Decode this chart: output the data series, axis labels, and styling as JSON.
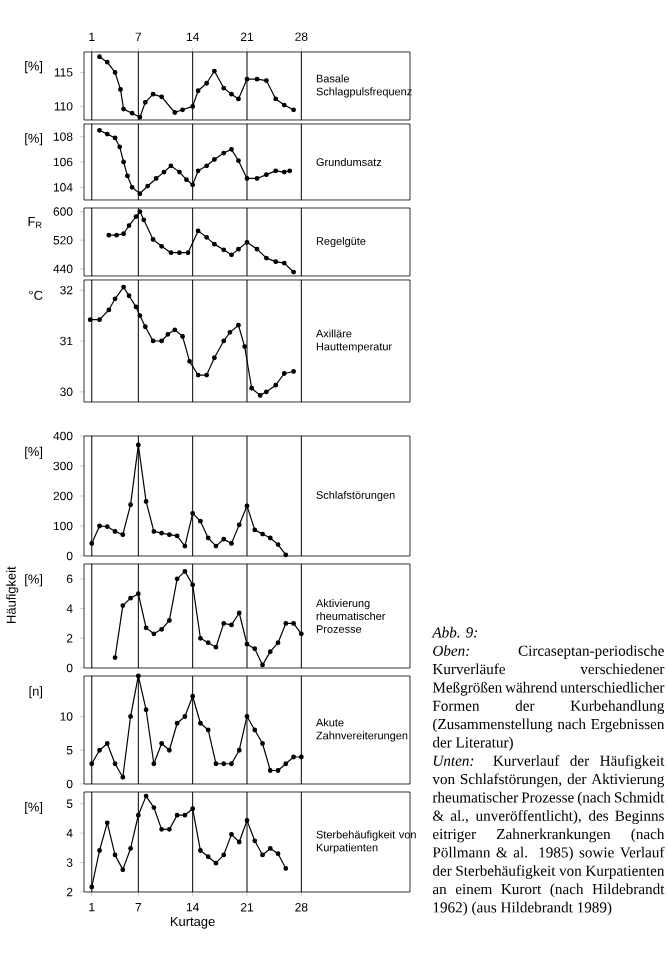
{
  "chart_data": [
    {
      "type": "line",
      "xlim": [
        0,
        42
      ],
      "xticks": [
        1,
        7,
        14,
        21,
        28
      ],
      "ylim": [
        108,
        118
      ],
      "yticks": [
        110,
        115
      ],
      "ylabel": "[%]",
      "grid": "x",
      "marker": "circle",
      "series": [
        {
          "name": "Basale Schlagpulsfrequenz",
          "color": "#000000",
          "x": [
            2.0,
            3.0,
            4.0,
            4.7,
            5.1,
            6.2,
            7.2,
            7.9,
            8.9,
            10.0,
            11.7,
            12.7,
            14.0,
            14.7,
            15.8,
            16.8,
            18.0,
            19.0,
            19.9,
            21.0,
            22.3,
            23.5,
            24.7,
            25.8,
            27.0
          ],
          "values": [
            117.3,
            116.5,
            115,
            112.5,
            109.6,
            109,
            108.4,
            110.6,
            111.8,
            111.4,
            109.1,
            109.5,
            110,
            112.3,
            113.4,
            115.2,
            112.7,
            111.8,
            111.1,
            114,
            114,
            113.8,
            111.1,
            110.2,
            109.5
          ]
        }
      ]
    },
    {
      "type": "line",
      "xlim": [
        0,
        42
      ],
      "xticks": [
        1,
        7,
        14,
        21,
        28
      ],
      "ylim": [
        103,
        109
      ],
      "yticks": [
        104,
        106,
        108
      ],
      "ylabel": "[%]",
      "grid": "x",
      "marker": "circle",
      "tick_labels": "y",
      "series": [
        {
          "name": "Grundumsatz",
          "color": "#000000",
          "x": [
            2.0,
            3.0,
            4.0,
            4.6,
            5.1,
            5.6,
            6.2,
            7.2,
            8.2,
            9.3,
            10.3,
            11.2,
            12.3,
            13.2,
            14.0,
            14.7,
            15.8,
            16.8,
            18.0,
            19.0,
            19.9,
            21.0,
            22.3,
            23.5,
            24.7,
            25.8,
            26.5
          ],
          "values": [
            108.5,
            108.2,
            107.9,
            107.2,
            106,
            104.9,
            104,
            103.5,
            104.1,
            104.7,
            105.2,
            105.7,
            105.2,
            104.6,
            104.2,
            105.3,
            105.7,
            106.2,
            106.7,
            107,
            106.1,
            104.7,
            104.7,
            105,
            105.3,
            105.2,
            105.3
          ]
        }
      ]
    },
    {
      "type": "line",
      "xlim": [
        0,
        42
      ],
      "xticks": [
        1,
        7,
        14,
        21,
        28
      ],
      "ylim": [
        420,
        610
      ],
      "yticks": [
        440,
        520,
        600
      ],
      "ylabel": "F$_{R}$",
      "grid": "x",
      "marker": "circle",
      "tick_labels": "y",
      "series": [
        {
          "name": "Regelgüte",
          "color": "#000000",
          "x": [
            3.2,
            4.2,
            5.1,
            5.8,
            6.7,
            7.2,
            7.7,
            8.9,
            10.0,
            11.2,
            12.3,
            13.4,
            14.7,
            15.8,
            16.8,
            18.0,
            19.0,
            19.9,
            21.0,
            22.3,
            23.5,
            24.7,
            25.8,
            27.0
          ],
          "values": [
            534,
            534,
            538,
            561,
            586,
            600,
            577,
            522,
            503,
            485,
            485,
            485,
            546,
            528,
            509,
            493,
            479,
            495,
            514,
            495,
            470,
            460,
            456,
            431
          ]
        }
      ]
    },
    {
      "type": "line",
      "xlim": [
        0,
        42
      ],
      "xticks": [
        1,
        7,
        14,
        21,
        28
      ],
      "ylim": [
        29.8,
        32.2
      ],
      "yticks": [
        30,
        31,
        32
      ],
      "ylabel": "°C",
      "grid": "x",
      "marker": "circle",
      "tick_labels": "y",
      "series": [
        {
          "name": "Axilläre Hauttemperatur",
          "color": "#000000",
          "x": [
            0.8,
            2.0,
            3.2,
            4.0,
            5.1,
            5.8,
            6.7,
            7.2,
            7.9,
            8.9,
            10.0,
            10.8,
            11.7,
            12.7,
            13.6,
            14.7,
            15.8,
            16.8,
            18.0,
            18.8,
            19.9,
            20.7,
            21.6,
            22.7,
            23.5,
            24.7,
            25.8,
            27.0
          ],
          "values": [
            31.42,
            31.42,
            31.61,
            31.83,
            32.06,
            31.89,
            31.67,
            31.5,
            31.28,
            31,
            31,
            31.13,
            31.22,
            31.09,
            30.6,
            30.33,
            30.33,
            30.67,
            31,
            31.17,
            31.31,
            30.89,
            30.07,
            29.93,
            30,
            30.13,
            30.36,
            30.4
          ]
        }
      ]
    },
    {
      "type": "line",
      "xlim": [
        0,
        42
      ],
      "xticks": [
        1,
        7,
        14,
        21,
        28
      ],
      "ylim": [
        0,
        400
      ],
      "yticks": [
        0,
        100,
        200,
        300,
        400
      ],
      "ylabel": "[%]",
      "grid": "x",
      "marker": "circle",
      "tick_labels": "y",
      "series": [
        {
          "name": "Schlafstörungen",
          "color": "#000000",
          "x": [
            1,
            2,
            3,
            4,
            5,
            6,
            7,
            8,
            9,
            10,
            11,
            12,
            13,
            14,
            15,
            16,
            17,
            18,
            19,
            20,
            21,
            22,
            23,
            24,
            25,
            26
          ],
          "values": [
            42,
            100,
            98,
            82,
            71,
            171,
            370,
            182,
            82,
            76,
            71,
            67,
            33,
            142,
            116,
            60,
            33,
            56,
            42,
            104,
            167,
            87,
            73,
            60,
            38,
            4
          ]
        }
      ]
    },
    {
      "type": "line",
      "xlim": [
        0,
        42
      ],
      "xticks": [
        1,
        7,
        14,
        21,
        28
      ],
      "ylim": [
        0,
        7
      ],
      "yticks": [
        0,
        2,
        4,
        6
      ],
      "ylabel": "[%]",
      "grid": "x",
      "marker": "circle",
      "tick_labels": "y",
      "annotations": [
        "Häufigkeit"
      ],
      "series": [
        {
          "name": "Aktivierung rheumatischer Prozesse",
          "color": "#000000",
          "x": [
            4,
            5,
            6,
            7,
            8,
            9,
            10,
            11,
            12,
            13,
            14,
            15,
            16,
            17,
            18,
            19,
            20,
            21,
            22,
            23,
            24,
            25,
            26,
            27,
            28
          ],
          "values": [
            0.7,
            4.2,
            4.7,
            5,
            2.7,
            2.3,
            2.6,
            3.2,
            6.0,
            6.5,
            5.6,
            2.0,
            1.7,
            1.4,
            3.0,
            2.9,
            3.7,
            1.6,
            1.3,
            0.2,
            1.1,
            1.7,
            3.0,
            3.0,
            2.3
          ]
        }
      ]
    },
    {
      "type": "line",
      "xlim": [
        0,
        42
      ],
      "xticks": [
        1,
        7,
        14,
        21,
        28
      ],
      "ylim": [
        0,
        16
      ],
      "yticks": [
        0,
        5,
        10
      ],
      "ylabel": "[n]",
      "grid": "x",
      "marker": "circle",
      "tick_labels": "y",
      "series": [
        {
          "name": "Akute Zahnvereiterungen",
          "color": "#000000",
          "x": [
            1,
            2,
            3,
            4,
            5,
            6,
            7,
            8,
            9,
            10,
            11,
            12,
            13,
            14,
            15,
            16,
            17,
            18,
            19,
            20,
            21,
            22,
            23,
            24,
            25,
            26,
            27,
            28
          ],
          "values": [
            3,
            5,
            6,
            3,
            1,
            10,
            16,
            11,
            3,
            6,
            5,
            9,
            10,
            13,
            9,
            8,
            3,
            3,
            3,
            5,
            10,
            8,
            6,
            2,
            2,
            3,
            4,
            4
          ]
        }
      ]
    },
    {
      "type": "line",
      "xlim": [
        0,
        42
      ],
      "xticks": [
        1,
        7,
        14,
        21,
        28
      ],
      "ylim": [
        2,
        5.4
      ],
      "yticks": [
        2,
        3,
        4,
        5
      ],
      "ylabel": "[%]",
      "xlabel": "Kurtage",
      "grid": "x",
      "marker": "circle",
      "series": [
        {
          "name": "Sterbehäufigkeit von Kurpatienten",
          "color": "#000000",
          "x": [
            1,
            2,
            3,
            4,
            5,
            6,
            7,
            8,
            9,
            10,
            11,
            12,
            13,
            14,
            15,
            16,
            17,
            18,
            19,
            20,
            21,
            22,
            23,
            24,
            25,
            26
          ],
          "values": [
            2.17,
            3.41,
            4.35,
            3.26,
            2.76,
            3.48,
            4.61,
            5.26,
            4.87,
            4.13,
            4.13,
            4.61,
            4.61,
            4.83,
            3.41,
            3.2,
            2.98,
            3.26,
            3.96,
            3.7,
            4.43,
            3.74,
            3.26,
            3.48,
            3.3,
            2.8
          ]
        }
      ]
    },
    {
      "type": "other",
      "annotations": [
        "*Abb. 9:*",
        "*Oben:* Circaseptan-periodische Kurverläufe verschiedener Meßgrößen während unterschiedlicher Formen der Kurbehandlung (Zusammenstellung nach Ergebnissen der Literatur)",
        "*Unten:* Kurverlauf der Häufigkeit von Schlafstörungen, der Aktivierung rheumatischer Prozesse (nach Schmidt & al., unveröffentlicht), des Beginns eitriger Zahnerkrankungen (nach Pöllmann & al. 1985) sowie Verlauf der Sterbehäufigkeit von Kurpatienten an einem Kurort (nach Hildebrandt 1962) (aus Hildebrandt 1989)"
      ]
    }
  ]
}
